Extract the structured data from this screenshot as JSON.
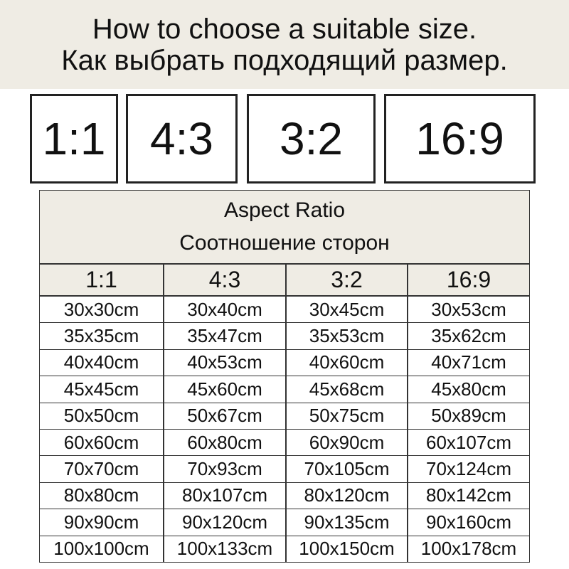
{
  "header": {
    "lines": [
      "How to choose a suitable size.",
      "Как выбрать подходящий размер."
    ]
  },
  "boxes": [
    "1:1",
    "4:3",
    "3:2",
    "16:9"
  ],
  "table": {
    "title": [
      "Aspect Ratio",
      "Соотношение сторон"
    ],
    "columns": [
      "1:1",
      "4:3",
      "3:2",
      "16:9"
    ],
    "rows": [
      [
        "30x30cm",
        "30x40cm",
        "30x45cm",
        "30x53cm"
      ],
      [
        "35x35cm",
        "35x47cm",
        "35x53cm",
        "35x62cm"
      ],
      [
        "40x40cm",
        "40x53cm",
        "40x60cm",
        "40x71cm"
      ],
      [
        "45x45cm",
        "45x60cm",
        "45x68cm",
        "45x80cm"
      ],
      [
        "50x50cm",
        "50x67cm",
        "50x75cm",
        "50x89cm"
      ],
      [
        "60x60cm",
        "60x80cm",
        "60x90cm",
        "60x107cm"
      ],
      [
        "70x70cm",
        "70x93cm",
        "70x105cm",
        "70x124cm"
      ],
      [
        "80x80cm",
        "80x107cm",
        "80x120cm",
        "80x142cm"
      ],
      [
        "90x90cm",
        "90x120cm",
        "90x135cm",
        "90x160cm"
      ],
      [
        "100x100cm",
        "100x133cm",
        "100x150cm",
        "100x178cm"
      ]
    ]
  }
}
